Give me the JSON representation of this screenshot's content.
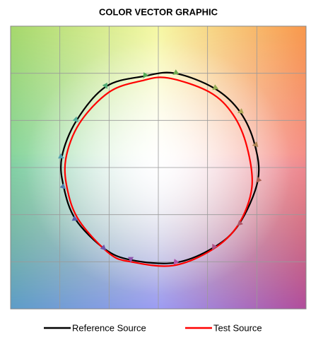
{
  "chart_data": {
    "type": "vector",
    "title": "COLOR VECTOR GRAPHIC",
    "xlim": [
      -1.5,
      1.5
    ],
    "ylim": [
      -1.5,
      1.5
    ],
    "xticks": [
      -1.5,
      -1,
      -0.5,
      0,
      0.5,
      1,
      1.5
    ],
    "yticks": [
      -1.5,
      -1,
      -0.5,
      0,
      0.5,
      1,
      1.5
    ],
    "grid": true,
    "legend": "bottom",
    "series": [
      {
        "name": "Reference Source",
        "color": "#000000",
        "x": [
          1.01,
          0.98,
          0.83,
          0.57,
          0.17,
          -0.14,
          -0.53,
          -0.83,
          -0.98,
          -0.96,
          -0.84,
          -0.55,
          -0.28,
          0.17,
          0.56,
          0.82
        ],
        "values": [
          -0.14,
          0.24,
          0.59,
          0.84,
          1.0,
          0.97,
          0.86,
          0.5,
          0.11,
          -0.21,
          -0.55,
          -0.86,
          -0.98,
          -1.01,
          -0.85,
          -0.6
        ]
      },
      {
        "name": "Test Source",
        "color": "#ff0000",
        "x": [
          0.95,
          0.9,
          0.76,
          0.52,
          0.1,
          -0.17,
          -0.5,
          -0.8,
          -0.94,
          -0.92,
          -0.8,
          -0.5,
          -0.28,
          0.15,
          0.55,
          0.81
        ],
        "values": [
          -0.21,
          0.22,
          0.56,
          0.8,
          0.95,
          0.92,
          0.8,
          0.47,
          0.09,
          -0.25,
          -0.57,
          -0.91,
          -1.0,
          -1.04,
          -0.87,
          -0.61
        ]
      }
    ]
  }
}
